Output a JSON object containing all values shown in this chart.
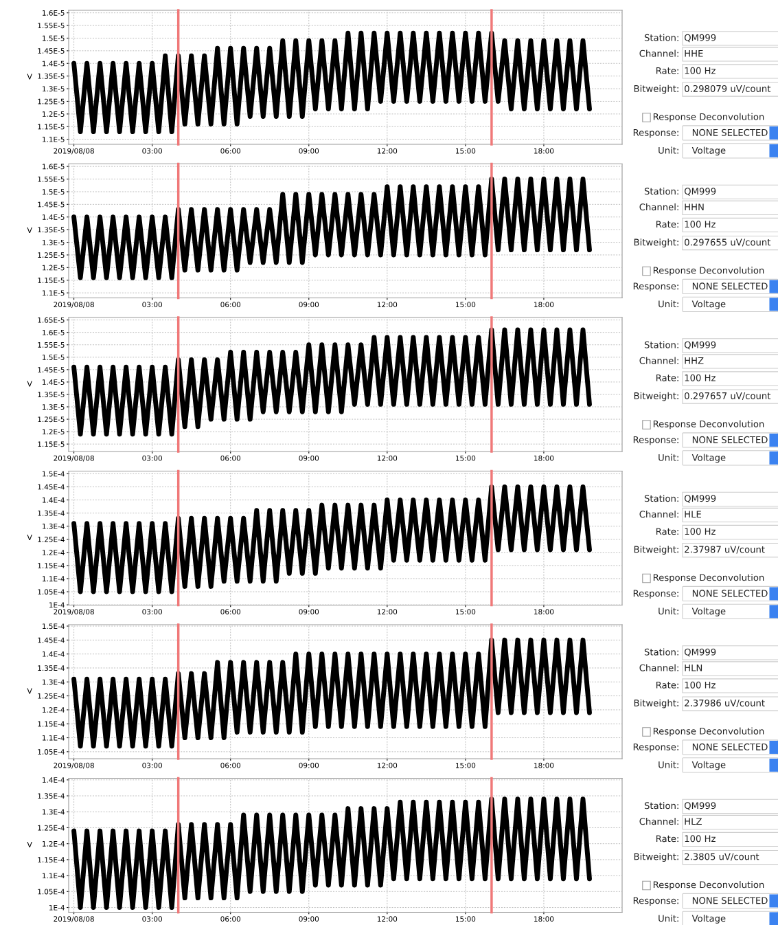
{
  "chart_data": [
    {
      "type": "line",
      "ylabel": "V",
      "xlim": [
        -0.2,
        21.0
      ],
      "ylim": [
        1.08e-05,
        1.61e-05
      ],
      "grid": true,
      "xticks": [
        {
          "value": 0,
          "label": "2019/08/08"
        },
        {
          "value": 3,
          "label": "03:00"
        },
        {
          "value": 6,
          "label": "06:00"
        },
        {
          "value": 9,
          "label": "09:00"
        },
        {
          "value": 12,
          "label": "12:00"
        },
        {
          "value": 15,
          "label": "15:00"
        },
        {
          "value": 18,
          "label": "18:00"
        }
      ],
      "yticks": [
        {
          "value": 1.1e-05,
          "label": "1.1E-5"
        },
        {
          "value": 1.15e-05,
          "label": "1.15E-5"
        },
        {
          "value": 1.2e-05,
          "label": "1.2E-5"
        },
        {
          "value": 1.25e-05,
          "label": "1.25E-5"
        },
        {
          "value": 1.3e-05,
          "label": "1.3E-5"
        },
        {
          "value": 1.35e-05,
          "label": "1.35E-5"
        },
        {
          "value": 1.4e-05,
          "label": "1.4E-5"
        },
        {
          "value": 1.45e-05,
          "label": "1.45E-5"
        },
        {
          "value": 1.5e-05,
          "label": "1.5E-5"
        },
        {
          "value": 1.55e-05,
          "label": "1.55E-5"
        },
        {
          "value": 1.6e-05,
          "label": "1.6E-5"
        }
      ],
      "ref_lines": [
        {
          "axis": "x",
          "value": 4,
          "color": "#f07878"
        },
        {
          "axis": "x",
          "value": 16,
          "color": "#f07878"
        }
      ],
      "x": [
        0,
        0.25,
        0.5,
        0.75,
        1,
        1.25,
        1.5,
        1.75,
        2,
        2.25,
        2.5,
        2.75,
        3,
        3.25,
        3.5,
        3.75,
        4,
        4.25,
        4.5,
        4.75,
        5,
        5.25,
        5.5,
        5.75,
        6,
        6.25,
        6.5,
        6.75,
        7,
        7.25,
        7.5,
        7.75,
        8,
        8.25,
        8.5,
        8.75,
        9,
        9.25,
        9.5,
        9.75,
        10,
        10.25,
        10.5,
        10.75,
        11,
        11.25,
        11.5,
        11.75,
        12,
        12.25,
        12.5,
        12.75,
        13,
        13.25,
        13.5,
        13.75,
        14,
        14.25,
        14.5,
        14.75,
        15,
        15.25,
        15.5,
        15.75,
        16,
        16.25,
        16.5,
        16.75,
        17,
        17.25,
        17.5,
        17.75,
        18,
        18.25,
        18.5,
        18.75,
        19,
        19.25,
        19.5,
        19.75
      ],
      "series": [
        {
          "color": "#000000",
          "values": [
            1.4e-05,
            1.13e-05,
            1.4e-05,
            1.13e-05,
            1.4e-05,
            1.13e-05,
            1.4e-05,
            1.13e-05,
            1.4e-05,
            1.13e-05,
            1.4e-05,
            1.13e-05,
            1.4e-05,
            1.13e-05,
            1.43e-05,
            1.13e-05,
            1.43e-05,
            1.16e-05,
            1.43e-05,
            1.16e-05,
            1.43e-05,
            1.16e-05,
            1.46e-05,
            1.16e-05,
            1.46e-05,
            1.16e-05,
            1.46e-05,
            1.19e-05,
            1.46e-05,
            1.19e-05,
            1.46e-05,
            1.19e-05,
            1.49e-05,
            1.19e-05,
            1.49e-05,
            1.19e-05,
            1.49e-05,
            1.22e-05,
            1.49e-05,
            1.22e-05,
            1.49e-05,
            1.22e-05,
            1.52e-05,
            1.22e-05,
            1.52e-05,
            1.22e-05,
            1.52e-05,
            1.25e-05,
            1.52e-05,
            1.25e-05,
            1.52e-05,
            1.25e-05,
            1.52e-05,
            1.25e-05,
            1.52e-05,
            1.25e-05,
            1.52e-05,
            1.25e-05,
            1.52e-05,
            1.25e-05,
            1.52e-05,
            1.25e-05,
            1.52e-05,
            1.25e-05,
            1.52e-05,
            1.25e-05,
            1.49e-05,
            1.22e-05,
            1.49e-05,
            1.22e-05,
            1.49e-05,
            1.22e-05,
            1.49e-05,
            1.22e-05,
            1.49e-05,
            1.22e-05,
            1.49e-05,
            1.22e-05,
            1.49e-05,
            1.22e-05
          ]
        }
      ]
    },
    {
      "type": "other",
      "annotations": [
        "Station:",
        "QM999",
        "Channel:",
        "HHE",
        "Rate:",
        "100 Hz",
        "Bitweight:",
        "0.298079 uV/count",
        "Response Deconvolution",
        "Response:",
        "NONE SELECTED",
        "Unit:",
        "Voltage"
      ]
    },
    {
      "type": "line",
      "ylabel": "V",
      "xlim": [
        -0.2,
        21.0
      ],
      "ylim": [
        1.08e-05,
        1.61e-05
      ],
      "grid": true,
      "xticks": [
        {
          "value": 0,
          "label": "2019/08/08"
        },
        {
          "value": 3,
          "label": "03:00"
        },
        {
          "value": 6,
          "label": "06:00"
        },
        {
          "value": 9,
          "label": "09:00"
        },
        {
          "value": 12,
          "label": "12:00"
        },
        {
          "value": 15,
          "label": "15:00"
        },
        {
          "value": 18,
          "label": "18:00"
        }
      ],
      "yticks": [
        {
          "value": 1.1e-05,
          "label": "1.1E-5"
        },
        {
          "value": 1.15e-05,
          "label": "1.15E-5"
        },
        {
          "value": 1.2e-05,
          "label": "1.2E-5"
        },
        {
          "value": 1.25e-05,
          "label": "1.25E-5"
        },
        {
          "value": 1.3e-05,
          "label": "1.3E-5"
        },
        {
          "value": 1.35e-05,
          "label": "1.35E-5"
        },
        {
          "value": 1.4e-05,
          "label": "1.4E-5"
        },
        {
          "value": 1.45e-05,
          "label": "1.45E-5"
        },
        {
          "value": 1.5e-05,
          "label": "1.5E-5"
        },
        {
          "value": 1.55e-05,
          "label": "1.55E-5"
        },
        {
          "value": 1.6e-05,
          "label": "1.6E-5"
        }
      ],
      "ref_lines": [
        {
          "axis": "x",
          "value": 4,
          "color": "#f07878"
        },
        {
          "axis": "x",
          "value": 16,
          "color": "#f07878"
        }
      ],
      "x": [
        0,
        0.25,
        0.5,
        0.75,
        1,
        1.25,
        1.5,
        1.75,
        2,
        2.25,
        2.5,
        2.75,
        3,
        3.25,
        3.5,
        3.75,
        4,
        4.25,
        4.5,
        4.75,
        5,
        5.25,
        5.5,
        5.75,
        6,
        6.25,
        6.5,
        6.75,
        7,
        7.25,
        7.5,
        7.75,
        8,
        8.25,
        8.5,
        8.75,
        9,
        9.25,
        9.5,
        9.75,
        10,
        10.25,
        10.5,
        10.75,
        11,
        11.25,
        11.5,
        11.75,
        12,
        12.25,
        12.5,
        12.75,
        13,
        13.25,
        13.5,
        13.75,
        14,
        14.25,
        14.5,
        14.75,
        15,
        15.25,
        15.5,
        15.75,
        16,
        16.25,
        16.5,
        16.75,
        17,
        17.25,
        17.5,
        17.75,
        18,
        18.25,
        18.5,
        18.75,
        19,
        19.25,
        19.5,
        19.75
      ],
      "series": [
        {
          "color": "#000000",
          "values": [
            1.4e-05,
            1.16e-05,
            1.4e-05,
            1.16e-05,
            1.4e-05,
            1.16e-05,
            1.4e-05,
            1.16e-05,
            1.4e-05,
            1.16e-05,
            1.4e-05,
            1.16e-05,
            1.4e-05,
            1.16e-05,
            1.4e-05,
            1.16e-05,
            1.43e-05,
            1.19e-05,
            1.43e-05,
            1.19e-05,
            1.43e-05,
            1.19e-05,
            1.43e-05,
            1.19e-05,
            1.43e-05,
            1.19e-05,
            1.43e-05,
            1.22e-05,
            1.43e-05,
            1.22e-05,
            1.43e-05,
            1.22e-05,
            1.49e-05,
            1.22e-05,
            1.49e-05,
            1.22e-05,
            1.49e-05,
            1.25e-05,
            1.49e-05,
            1.25e-05,
            1.49e-05,
            1.25e-05,
            1.49e-05,
            1.25e-05,
            1.49e-05,
            1.25e-05,
            1.49e-05,
            1.25e-05,
            1.52e-05,
            1.25e-05,
            1.52e-05,
            1.25e-05,
            1.52e-05,
            1.25e-05,
            1.52e-05,
            1.25e-05,
            1.52e-05,
            1.25e-05,
            1.52e-05,
            1.25e-05,
            1.52e-05,
            1.25e-05,
            1.52e-05,
            1.25e-05,
            1.55e-05,
            1.27e-05,
            1.55e-05,
            1.27e-05,
            1.55e-05,
            1.27e-05,
            1.55e-05,
            1.27e-05,
            1.55e-05,
            1.27e-05,
            1.55e-05,
            1.27e-05,
            1.55e-05,
            1.27e-05,
            1.55e-05,
            1.27e-05
          ]
        }
      ]
    },
    {
      "type": "other",
      "annotations": [
        "Station:",
        "QM999",
        "Channel:",
        "HHN",
        "Rate:",
        "100 Hz",
        "Bitweight:",
        "0.297655 uV/count",
        "Response Deconvolution",
        "Response:",
        "NONE SELECTED",
        "Unit:",
        "Voltage"
      ]
    },
    {
      "type": "line",
      "ylabel": "V",
      "xlim": [
        -0.2,
        21.0
      ],
      "ylim": [
        1.12e-05,
        1.66e-05
      ],
      "grid": true,
      "xticks": [
        {
          "value": 0,
          "label": "2019/08/08"
        },
        {
          "value": 3,
          "label": "03:00"
        },
        {
          "value": 6,
          "label": "06:00"
        },
        {
          "value": 9,
          "label": "09:00"
        },
        {
          "value": 12,
          "label": "12:00"
        },
        {
          "value": 15,
          "label": "15:00"
        },
        {
          "value": 18,
          "label": "18:00"
        }
      ],
      "yticks": [
        {
          "value": 1.15e-05,
          "label": "1.15E-5"
        },
        {
          "value": 1.2e-05,
          "label": "1.2E-5"
        },
        {
          "value": 1.25e-05,
          "label": "1.25E-5"
        },
        {
          "value": 1.3e-05,
          "label": "1.3E-5"
        },
        {
          "value": 1.35e-05,
          "label": "1.35E-5"
        },
        {
          "value": 1.4e-05,
          "label": "1.4E-5"
        },
        {
          "value": 1.45e-05,
          "label": "1.45E-5"
        },
        {
          "value": 1.5e-05,
          "label": "1.5E-5"
        },
        {
          "value": 1.55e-05,
          "label": "1.55E-5"
        },
        {
          "value": 1.6e-05,
          "label": "1.6E-5"
        },
        {
          "value": 1.65e-05,
          "label": "1.65E-5"
        }
      ],
      "ref_lines": [
        {
          "axis": "x",
          "value": 4,
          "color": "#f07878"
        },
        {
          "axis": "x",
          "value": 16,
          "color": "#f07878"
        }
      ],
      "x": [
        0,
        0.25,
        0.5,
        0.75,
        1,
        1.25,
        1.5,
        1.75,
        2,
        2.25,
        2.5,
        2.75,
        3,
        3.25,
        3.5,
        3.75,
        4,
        4.25,
        4.5,
        4.75,
        5,
        5.25,
        5.5,
        5.75,
        6,
        6.25,
        6.5,
        6.75,
        7,
        7.25,
        7.5,
        7.75,
        8,
        8.25,
        8.5,
        8.75,
        9,
        9.25,
        9.5,
        9.75,
        10,
        10.25,
        10.5,
        10.75,
        11,
        11.25,
        11.5,
        11.75,
        12,
        12.25,
        12.5,
        12.75,
        13,
        13.25,
        13.5,
        13.75,
        14,
        14.25,
        14.5,
        14.75,
        15,
        15.25,
        15.5,
        15.75,
        16,
        16.25,
        16.5,
        16.75,
        17,
        17.25,
        17.5,
        17.75,
        18,
        18.25,
        18.5,
        18.75,
        19,
        19.25,
        19.5,
        19.75
      ],
      "series": [
        {
          "color": "#000000",
          "values": [
            1.46e-05,
            1.19e-05,
            1.46e-05,
            1.19e-05,
            1.46e-05,
            1.19e-05,
            1.46e-05,
            1.19e-05,
            1.46e-05,
            1.19e-05,
            1.46e-05,
            1.19e-05,
            1.46e-05,
            1.19e-05,
            1.46e-05,
            1.19e-05,
            1.49e-05,
            1.22e-05,
            1.49e-05,
            1.22e-05,
            1.49e-05,
            1.25e-05,
            1.49e-05,
            1.25e-05,
            1.52e-05,
            1.25e-05,
            1.52e-05,
            1.25e-05,
            1.52e-05,
            1.28e-05,
            1.52e-05,
            1.28e-05,
            1.52e-05,
            1.28e-05,
            1.52e-05,
            1.28e-05,
            1.55e-05,
            1.28e-05,
            1.55e-05,
            1.28e-05,
            1.55e-05,
            1.28e-05,
            1.55e-05,
            1.31e-05,
            1.55e-05,
            1.31e-05,
            1.58e-05,
            1.31e-05,
            1.58e-05,
            1.31e-05,
            1.58e-05,
            1.31e-05,
            1.58e-05,
            1.31e-05,
            1.58e-05,
            1.31e-05,
            1.58e-05,
            1.31e-05,
            1.58e-05,
            1.31e-05,
            1.58e-05,
            1.31e-05,
            1.58e-05,
            1.31e-05,
            1.61e-05,
            1.31e-05,
            1.61e-05,
            1.31e-05,
            1.61e-05,
            1.31e-05,
            1.61e-05,
            1.31e-05,
            1.61e-05,
            1.31e-05,
            1.61e-05,
            1.31e-05,
            1.61e-05,
            1.31e-05,
            1.61e-05,
            1.31e-05
          ]
        }
      ]
    },
    {
      "type": "other",
      "annotations": [
        "Station:",
        "QM999",
        "Channel:",
        "HHZ",
        "Rate:",
        "100 Hz",
        "Bitweight:",
        "0.297657 uV/count",
        "Response Deconvolution",
        "Response:",
        "NONE SELECTED",
        "Unit:",
        "Voltage"
      ]
    },
    {
      "type": "line",
      "ylabel": "V",
      "xlim": [
        -0.2,
        21.0
      ],
      "ylim": [
        9.99e-05,
        0.000151
      ],
      "grid": true,
      "xticks": [
        {
          "value": 0,
          "label": "2019/08/08"
        },
        {
          "value": 3,
          "label": "03:00"
        },
        {
          "value": 6,
          "label": "06:00"
        },
        {
          "value": 9,
          "label": "09:00"
        },
        {
          "value": 12,
          "label": "12:00"
        },
        {
          "value": 15,
          "label": "15:00"
        },
        {
          "value": 18,
          "label": "18:00"
        }
      ],
      "yticks": [
        {
          "value": 0.0001,
          "label": "1E-4"
        },
        {
          "value": 0.000105,
          "label": "1.05E-4"
        },
        {
          "value": 0.00011,
          "label": "1.1E-4"
        },
        {
          "value": 0.000115,
          "label": "1.15E-4"
        },
        {
          "value": 0.00012,
          "label": "1.2E-4"
        },
        {
          "value": 0.000125,
          "label": "1.25E-4"
        },
        {
          "value": 0.00013,
          "label": "1.3E-4"
        },
        {
          "value": 0.000135,
          "label": "1.35E-4"
        },
        {
          "value": 0.00014,
          "label": "1.4E-4"
        },
        {
          "value": 0.000145,
          "label": "1.45E-4"
        },
        {
          "value": 0.00015,
          "label": "1.5E-4"
        }
      ],
      "ref_lines": [
        {
          "axis": "x",
          "value": 4,
          "color": "#f07878"
        },
        {
          "axis": "x",
          "value": 16,
          "color": "#f07878"
        }
      ],
      "x": [
        0,
        0.25,
        0.5,
        0.75,
        1,
        1.25,
        1.5,
        1.75,
        2,
        2.25,
        2.5,
        2.75,
        3,
        3.25,
        3.5,
        3.75,
        4,
        4.25,
        4.5,
        4.75,
        5,
        5.25,
        5.5,
        5.75,
        6,
        6.25,
        6.5,
        6.75,
        7,
        7.25,
        7.5,
        7.75,
        8,
        8.25,
        8.5,
        8.75,
        9,
        9.25,
        9.5,
        9.75,
        10,
        10.25,
        10.5,
        10.75,
        11,
        11.25,
        11.5,
        11.75,
        12,
        12.25,
        12.5,
        12.75,
        13,
        13.25,
        13.5,
        13.75,
        14,
        14.25,
        14.5,
        14.75,
        15,
        15.25,
        15.5,
        15.75,
        16,
        16.25,
        16.5,
        16.75,
        17,
        17.25,
        17.5,
        17.75,
        18,
        18.25,
        18.5,
        18.75,
        19,
        19.25,
        19.5,
        19.75
      ],
      "series": [
        {
          "color": "#000000",
          "values": [
            0.000131,
            0.000105,
            0.000131,
            0.000105,
            0.000131,
            0.000105,
            0.000131,
            0.000105,
            0.000131,
            0.000105,
            0.000131,
            0.000105,
            0.000131,
            0.000105,
            0.000131,
            0.000105,
            0.000133,
            0.000107,
            0.000133,
            0.000107,
            0.000133,
            0.000107,
            0.000133,
            0.000109,
            0.000133,
            0.000109,
            0.000133,
            0.000109,
            0.000136,
            0.000109,
            0.000136,
            0.000109,
            0.000136,
            0.000112,
            0.000136,
            0.000112,
            0.000136,
            0.000112,
            0.000138,
            0.000114,
            0.000138,
            0.000114,
            0.000138,
            0.000114,
            0.000138,
            0.000114,
            0.000138,
            0.000114,
            0.00014,
            0.000117,
            0.00014,
            0.000117,
            0.00014,
            0.000117,
            0.00014,
            0.000117,
            0.00014,
            0.000117,
            0.00014,
            0.000117,
            0.00014,
            0.000117,
            0.00014,
            0.000117,
            0.000145,
            0.000121,
            0.000145,
            0.000121,
            0.000145,
            0.000121,
            0.000145,
            0.000121,
            0.000145,
            0.000121,
            0.000145,
            0.000121,
            0.000145,
            0.000121,
            0.000145,
            0.000121
          ]
        }
      ]
    },
    {
      "type": "other",
      "annotations": [
        "Station:",
        "QM999",
        "Channel:",
        "HLE",
        "Rate:",
        "100 Hz",
        "Bitweight:",
        "2.37987 uV/count",
        "Response Deconvolution",
        "Response:",
        "NONE SELECTED",
        "Unit:",
        "Voltage"
      ]
    },
    {
      "type": "line",
      "ylabel": "V",
      "xlim": [
        -0.2,
        21.0
      ],
      "ylim": [
        0.0001025,
        0.0001505
      ],
      "grid": true,
      "xticks": [
        {
          "value": 0,
          "label": "2019/08/08"
        },
        {
          "value": 3,
          "label": "03:00"
        },
        {
          "value": 6,
          "label": "06:00"
        },
        {
          "value": 9,
          "label": "09:00"
        },
        {
          "value": 12,
          "label": "12:00"
        },
        {
          "value": 15,
          "label": "15:00"
        },
        {
          "value": 18,
          "label": "18:00"
        }
      ],
      "yticks": [
        {
          "value": 0.000105,
          "label": "1.05E-4"
        },
        {
          "value": 0.00011,
          "label": "1.1E-4"
        },
        {
          "value": 0.000115,
          "label": "1.15E-4"
        },
        {
          "value": 0.00012,
          "label": "1.2E-4"
        },
        {
          "value": 0.000125,
          "label": "1.25E-4"
        },
        {
          "value": 0.00013,
          "label": "1.3E-4"
        },
        {
          "value": 0.000135,
          "label": "1.35E-4"
        },
        {
          "value": 0.00014,
          "label": "1.4E-4"
        },
        {
          "value": 0.000145,
          "label": "1.45E-4"
        },
        {
          "value": 0.00015,
          "label": "1.5E-4"
        }
      ],
      "ref_lines": [
        {
          "axis": "x",
          "value": 4,
          "color": "#f07878"
        },
        {
          "axis": "x",
          "value": 16,
          "color": "#f07878"
        }
      ],
      "x": [
        0,
        0.25,
        0.5,
        0.75,
        1,
        1.25,
        1.5,
        1.75,
        2,
        2.25,
        2.5,
        2.75,
        3,
        3.25,
        3.5,
        3.75,
        4,
        4.25,
        4.5,
        4.75,
        5,
        5.25,
        5.5,
        5.75,
        6,
        6.25,
        6.5,
        6.75,
        7,
        7.25,
        7.5,
        7.75,
        8,
        8.25,
        8.5,
        8.75,
        9,
        9.25,
        9.5,
        9.75,
        10,
        10.25,
        10.5,
        10.75,
        11,
        11.25,
        11.5,
        11.75,
        12,
        12.25,
        12.5,
        12.75,
        13,
        13.25,
        13.5,
        13.75,
        14,
        14.25,
        14.5,
        14.75,
        15,
        15.25,
        15.5,
        15.75,
        16,
        16.25,
        16.5,
        16.75,
        17,
        17.25,
        17.5,
        17.75,
        18,
        18.25,
        18.5,
        18.75,
        19,
        19.25,
        19.5,
        19.75
      ],
      "series": [
        {
          "color": "#000000",
          "values": [
            0.000131,
            0.000107,
            0.000131,
            0.000107,
            0.000131,
            0.000107,
            0.000131,
            0.000107,
            0.000131,
            0.000107,
            0.000131,
            0.000107,
            0.000131,
            0.000107,
            0.000131,
            0.000107,
            0.000133,
            0.00011,
            0.000133,
            0.00011,
            0.000133,
            0.00011,
            0.000137,
            0.00011,
            0.000137,
            0.000112,
            0.000137,
            0.000112,
            0.000137,
            0.000112,
            0.000137,
            0.000112,
            0.000137,
            0.000112,
            0.00014,
            0.000112,
            0.00014,
            0.000114,
            0.00014,
            0.000114,
            0.00014,
            0.000114,
            0.00014,
            0.000114,
            0.00014,
            0.000114,
            0.00014,
            0.000114,
            0.00014,
            0.000114,
            0.00014,
            0.000114,
            0.00014,
            0.000114,
            0.00014,
            0.000114,
            0.00014,
            0.000114,
            0.00014,
            0.000114,
            0.00014,
            0.000114,
            0.00014,
            0.000114,
            0.000145,
            0.000119,
            0.000145,
            0.000119,
            0.000145,
            0.000119,
            0.000145,
            0.000119,
            0.000145,
            0.000119,
            0.000145,
            0.000119,
            0.000145,
            0.000119,
            0.000145,
            0.000119
          ]
        }
      ]
    },
    {
      "type": "other",
      "annotations": [
        "Station:",
        "QM999",
        "Channel:",
        "HLN",
        "Rate:",
        "100 Hz",
        "Bitweight:",
        "2.37986 uV/count",
        "Response Deconvolution",
        "Response:",
        "NONE SELECTED",
        "Unit:",
        "Voltage"
      ]
    },
    {
      "type": "line",
      "ylabel": "V",
      "xlim": [
        -0.2,
        21.0
      ],
      "ylim": [
        9.85e-05,
        0.0001405
      ],
      "grid": true,
      "xticks": [
        {
          "value": 0,
          "label": "2019/08/08"
        },
        {
          "value": 3,
          "label": "03:00"
        },
        {
          "value": 6,
          "label": "06:00"
        },
        {
          "value": 9,
          "label": "09:00"
        },
        {
          "value": 12,
          "label": "12:00"
        },
        {
          "value": 15,
          "label": "15:00"
        },
        {
          "value": 18,
          "label": "18:00"
        }
      ],
      "yticks": [
        {
          "value": 0.0001,
          "label": "1E-4"
        },
        {
          "value": 0.000105,
          "label": "1.05E-4"
        },
        {
          "value": 0.00011,
          "label": "1.1E-4"
        },
        {
          "value": 0.000115,
          "label": "1.15E-4"
        },
        {
          "value": 0.00012,
          "label": "1.2E-4"
        },
        {
          "value": 0.000125,
          "label": "1.25E-4"
        },
        {
          "value": 0.00013,
          "label": "1.3E-4"
        },
        {
          "value": 0.000135,
          "label": "1.35E-4"
        },
        {
          "value": 0.00014,
          "label": "1.4E-4"
        }
      ],
      "ref_lines": [
        {
          "axis": "x",
          "value": 4,
          "color": "#f07878"
        },
        {
          "axis": "x",
          "value": 16,
          "color": "#f07878"
        }
      ],
      "x": [
        0,
        0.25,
        0.5,
        0.75,
        1,
        1.25,
        1.5,
        1.75,
        2,
        2.25,
        2.5,
        2.75,
        3,
        3.25,
        3.5,
        3.75,
        4,
        4.25,
        4.5,
        4.75,
        5,
        5.25,
        5.5,
        5.75,
        6,
        6.25,
        6.5,
        6.75,
        7,
        7.25,
        7.5,
        7.75,
        8,
        8.25,
        8.5,
        8.75,
        9,
        9.25,
        9.5,
        9.75,
        10,
        10.25,
        10.5,
        10.75,
        11,
        11.25,
        11.5,
        11.75,
        12,
        12.25,
        12.5,
        12.75,
        13,
        13.25,
        13.5,
        13.75,
        14,
        14.25,
        14.5,
        14.75,
        15,
        15.25,
        15.5,
        15.75,
        16,
        16.25,
        16.5,
        16.75,
        17,
        17.25,
        17.5,
        17.75,
        18,
        18.25,
        18.5,
        18.75,
        19,
        19.25,
        19.5,
        19.75
      ],
      "series": [
        {
          "color": "#000000",
          "values": [
            0.000124,
            0.0001,
            0.000124,
            0.0001,
            0.000124,
            0.0001,
            0.000124,
            0.0001,
            0.000124,
            0.0001,
            0.000124,
            0.0001,
            0.000124,
            0.0001,
            0.000124,
            0.0001,
            0.000126,
            0.000103,
            0.000126,
            0.000103,
            0.000126,
            0.000103,
            0.000126,
            0.000103,
            0.000126,
            0.000103,
            0.000129,
            0.000105,
            0.000129,
            0.000105,
            0.000129,
            0.000105,
            0.000129,
            0.000105,
            0.000129,
            0.000105,
            0.000129,
            0.000107,
            0.000129,
            0.000107,
            0.000129,
            0.000107,
            0.000131,
            0.000107,
            0.000131,
            0.000107,
            0.000131,
            0.000107,
            0.000131,
            0.000109,
            0.000133,
            0.000109,
            0.000133,
            0.000109,
            0.000133,
            0.000109,
            0.000133,
            0.000109,
            0.000133,
            0.000109,
            0.000133,
            0.000109,
            0.000133,
            0.000109,
            0.000134,
            0.000109,
            0.000134,
            0.000109,
            0.000134,
            0.000109,
            0.000134,
            0.000109,
            0.000134,
            0.000109,
            0.000134,
            0.000109,
            0.000134,
            0.000109,
            0.000134,
            0.000109
          ]
        }
      ]
    },
    {
      "type": "other",
      "annotations": [
        "Station:",
        "QM999",
        "Channel:",
        "HLZ",
        "Rate:",
        "100 Hz",
        "Bitweight:",
        "2.3805 uV/count",
        "Response Deconvolution",
        "Response:",
        "NONE SELECTED",
        "Unit:",
        "Voltage"
      ]
    }
  ]
}
